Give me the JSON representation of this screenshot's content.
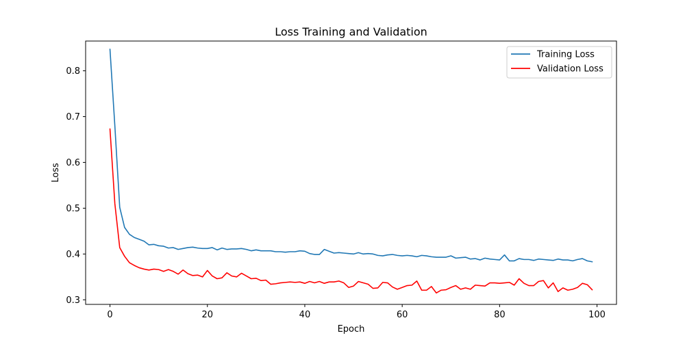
{
  "chart_data": {
    "type": "line",
    "title": "Loss Training and Validation",
    "xlabel": "Epoch",
    "ylabel": "Loss",
    "xlim": [
      -5,
      104
    ],
    "ylim": [
      0.29,
      0.865
    ],
    "xticks": [
      0,
      20,
      40,
      60,
      80,
      100
    ],
    "yticks": [
      0.3,
      0.4,
      0.5,
      0.6,
      0.7,
      0.8
    ],
    "grid": false,
    "legend": "top-right",
    "x": [
      0,
      1,
      2,
      3,
      4,
      5,
      6,
      7,
      8,
      9,
      10,
      11,
      12,
      13,
      14,
      15,
      16,
      17,
      18,
      19,
      20,
      21,
      22,
      23,
      24,
      25,
      26,
      27,
      28,
      29,
      30,
      31,
      32,
      33,
      34,
      35,
      36,
      37,
      38,
      39,
      40,
      41,
      42,
      43,
      44,
      45,
      46,
      47,
      48,
      49,
      50,
      51,
      52,
      53,
      54,
      55,
      56,
      57,
      58,
      59,
      60,
      61,
      62,
      63,
      64,
      65,
      66,
      67,
      68,
      69,
      70,
      71,
      72,
      73,
      74,
      75,
      76,
      77,
      78,
      79,
      80,
      81,
      82,
      83,
      84,
      85,
      86,
      87,
      88,
      89,
      90,
      91,
      92,
      93,
      94,
      95,
      96,
      97,
      98,
      99
    ],
    "series": [
      {
        "name": "Training Loss",
        "color": "#1f77b4",
        "values": [
          0.847,
          0.68,
          0.502,
          0.458,
          0.443,
          0.436,
          0.432,
          0.428,
          0.42,
          0.421,
          0.418,
          0.417,
          0.413,
          0.414,
          0.41,
          0.412,
          0.414,
          0.415,
          0.413,
          0.412,
          0.412,
          0.414,
          0.409,
          0.413,
          0.41,
          0.411,
          0.411,
          0.412,
          0.41,
          0.407,
          0.409,
          0.407,
          0.407,
          0.407,
          0.405,
          0.405,
          0.404,
          0.405,
          0.405,
          0.407,
          0.406,
          0.401,
          0.399,
          0.399,
          0.41,
          0.406,
          0.402,
          0.403,
          0.402,
          0.401,
          0.4,
          0.403,
          0.4,
          0.401,
          0.4,
          0.397,
          0.396,
          0.398,
          0.399,
          0.397,
          0.396,
          0.397,
          0.396,
          0.394,
          0.397,
          0.396,
          0.394,
          0.393,
          0.393,
          0.393,
          0.396,
          0.391,
          0.392,
          0.393,
          0.389,
          0.39,
          0.387,
          0.391,
          0.389,
          0.388,
          0.387,
          0.398,
          0.385,
          0.385,
          0.39,
          0.388,
          0.388,
          0.386,
          0.389,
          0.388,
          0.387,
          0.386,
          0.389,
          0.387,
          0.387,
          0.385,
          0.388,
          0.39,
          0.385,
          0.383
        ]
      },
      {
        "name": "Validation Loss",
        "color": "#ff0000",
        "values": [
          0.673,
          0.51,
          0.414,
          0.395,
          0.381,
          0.375,
          0.37,
          0.367,
          0.365,
          0.367,
          0.366,
          0.362,
          0.366,
          0.362,
          0.356,
          0.365,
          0.357,
          0.353,
          0.354,
          0.35,
          0.364,
          0.352,
          0.346,
          0.348,
          0.359,
          0.352,
          0.35,
          0.358,
          0.352,
          0.346,
          0.347,
          0.342,
          0.343,
          0.334,
          0.335,
          0.337,
          0.338,
          0.339,
          0.338,
          0.339,
          0.336,
          0.34,
          0.337,
          0.34,
          0.336,
          0.339,
          0.339,
          0.341,
          0.337,
          0.327,
          0.33,
          0.34,
          0.337,
          0.334,
          0.325,
          0.326,
          0.338,
          0.337,
          0.328,
          0.323,
          0.327,
          0.331,
          0.332,
          0.341,
          0.321,
          0.321,
          0.329,
          0.315,
          0.321,
          0.322,
          0.327,
          0.331,
          0.323,
          0.326,
          0.323,
          0.332,
          0.331,
          0.33,
          0.337,
          0.337,
          0.336,
          0.337,
          0.338,
          0.332,
          0.346,
          0.336,
          0.331,
          0.331,
          0.34,
          0.342,
          0.326,
          0.337,
          0.318,
          0.326,
          0.321,
          0.323,
          0.327,
          0.336,
          0.333,
          0.322
        ]
      }
    ]
  }
}
